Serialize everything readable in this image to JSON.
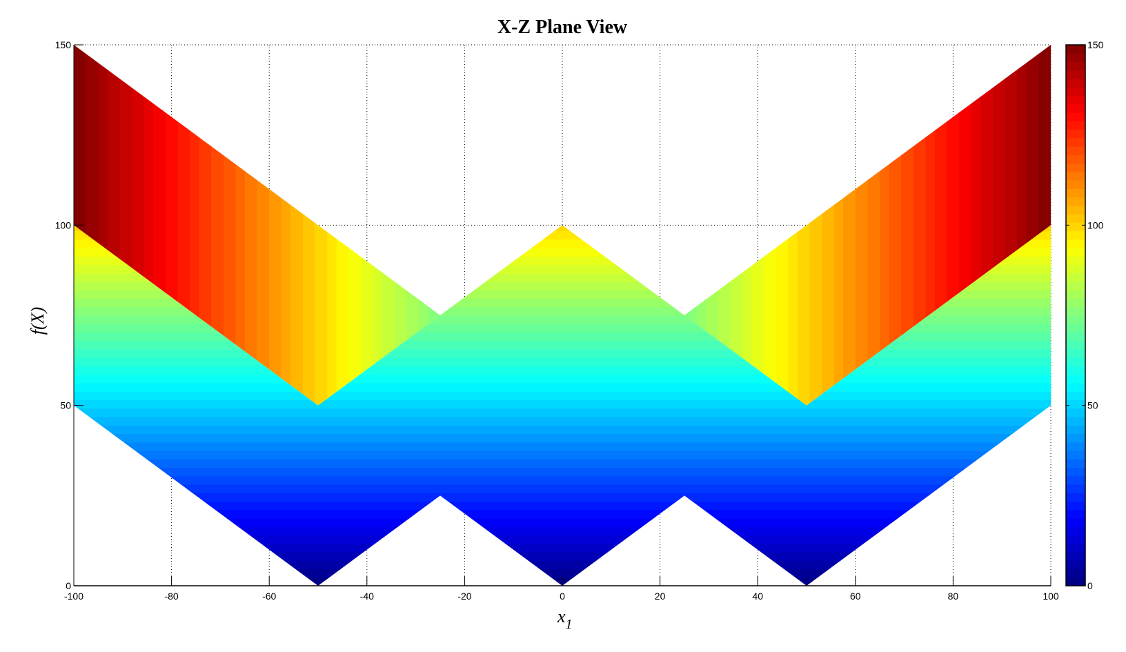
{
  "chart_data": {
    "type": "heatmap",
    "title": "X-Z Plane View",
    "xlabel_base": "x",
    "xlabel_sub": "1",
    "ylabel": "f(X)",
    "xlim": [
      -100,
      100
    ],
    "ylim": [
      0,
      150
    ],
    "xticks": [
      -100,
      -80,
      -60,
      -40,
      -20,
      0,
      20,
      40,
      60,
      80,
      100
    ],
    "yticks": [
      0,
      50,
      100,
      150
    ],
    "grid": true,
    "colormap": "jet",
    "colormap_levels": 64,
    "clim": [
      0,
      150
    ],
    "colorbar_ticks": [
      0,
      50,
      100,
      150
    ],
    "front_surface": {
      "color_by": "f(X)",
      "top": [
        [
          -100,
          100
        ],
        [
          -50,
          50
        ],
        [
          -25,
          75
        ],
        [
          0,
          100
        ],
        [
          25,
          75
        ],
        [
          50,
          50
        ],
        [
          100,
          100
        ]
      ],
      "bottom": [
        [
          -100,
          50
        ],
        [
          -50,
          0
        ],
        [
          -25,
          25
        ],
        [
          0,
          0
        ],
        [
          25,
          25
        ],
        [
          50,
          0
        ],
        [
          100,
          50
        ]
      ]
    },
    "back_surfaces": [
      {
        "color_by": "x",
        "color_value_at_x": [
          [
            -100,
            150
          ],
          [
            -25,
            75
          ]
        ],
        "polygon": [
          [
            -100,
            150
          ],
          [
            -50,
            100
          ],
          [
            -25,
            75
          ],
          [
            -50,
            50
          ],
          [
            -100,
            100
          ]
        ]
      },
      {
        "color_by": "x",
        "color_value_at_x": [
          [
            25,
            75
          ],
          [
            100,
            150
          ]
        ],
        "polygon": [
          [
            100,
            150
          ],
          [
            50,
            100
          ],
          [
            25,
            75
          ],
          [
            50,
            50
          ],
          [
            100,
            100
          ]
        ]
      }
    ]
  }
}
